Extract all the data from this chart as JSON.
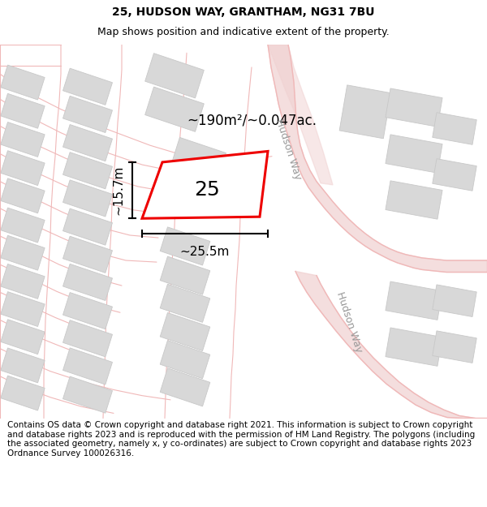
{
  "title": "25, HUDSON WAY, GRANTHAM, NG31 7BU",
  "subtitle": "Map shows position and indicative extent of the property.",
  "footer": "Contains OS data © Crown copyright and database right 2021. This information is subject to Crown copyright and database rights 2023 and is reproduced with the permission of HM Land Registry. The polygons (including the associated geometry, namely x, y co-ordinates) are subject to Crown copyright and database rights 2023 Ordnance Survey 100026316.",
  "area_text": "~190m²/~0.047ac.",
  "width_text": "~25.5m",
  "height_text": "~15.7m",
  "number_text": "25",
  "road_label_1": "Hudson Way",
  "road_label_2": "Hudson Way",
  "bg_color": "#f7f0f0",
  "road_line_color": "#f0b8b8",
  "road_fill_color": "#f0d0d0",
  "building_face_color": "#d8d8d8",
  "building_edge_color": "#c8c8c8",
  "plot_edge_color": "#ee0000",
  "plot_fill_color": "#ffffff",
  "title_fontsize": 10,
  "subtitle_fontsize": 9,
  "footer_fontsize": 7.5,
  "map_xlim": [
    0,
    600
  ],
  "map_ylim": [
    0,
    445
  ]
}
